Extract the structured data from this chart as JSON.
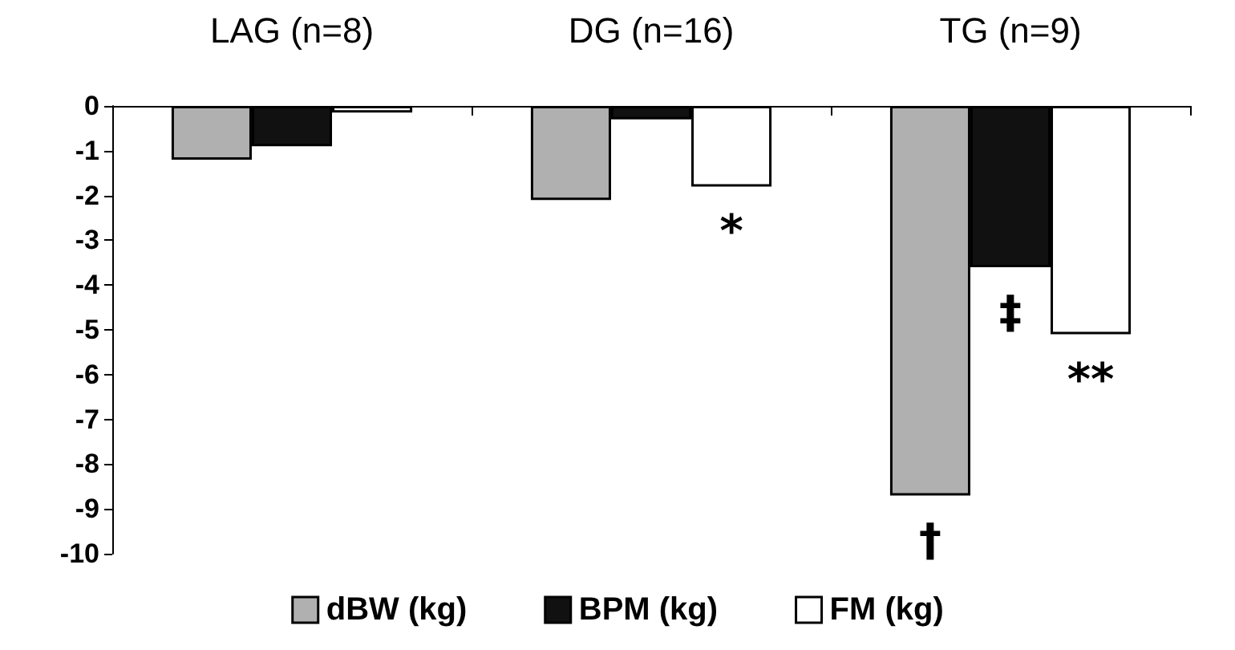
{
  "chart_data": {
    "type": "bar",
    "categories": [
      "LAG (n=8)",
      "DG (n=16)",
      "TG (n=9)"
    ],
    "series": [
      {
        "name": "dBW (kg)",
        "color": "#b0b0b0",
        "values": [
          -1.2,
          -2.1,
          -8.7
        ],
        "value_labels": [
          null,
          null,
          "†"
        ]
      },
      {
        "name": "BPM (kg)",
        "color": "#111111",
        "values": [
          -0.9,
          -0.3,
          -3.6
        ],
        "value_labels": [
          null,
          null,
          "‡"
        ]
      },
      {
        "name": "FM (kg)",
        "color": "#ffffff",
        "values": [
          -0.15,
          -1.8,
          -5.1
        ],
        "value_labels": [
          null,
          "*",
          "**"
        ]
      }
    ],
    "ylim": [
      -10,
      0
    ],
    "yticks": [
      -10,
      -9,
      -8,
      -7,
      -6,
      -5,
      -4,
      -3,
      -2,
      -1,
      0
    ],
    "grid": false,
    "legend": "bottom"
  }
}
